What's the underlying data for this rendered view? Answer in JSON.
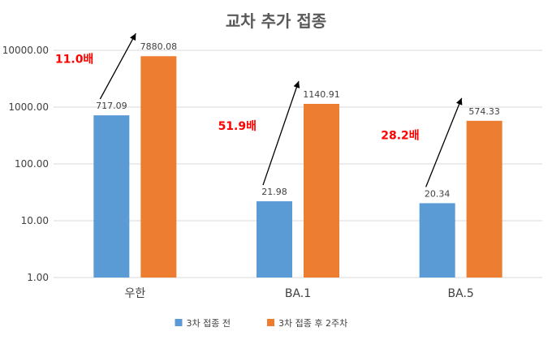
{
  "chart_data": {
    "type": "bar",
    "title": "교차 추가 접종",
    "y_scale": "log",
    "ylim": [
      1,
      10000
    ],
    "y_ticks": [
      "1.00",
      "10.00",
      "100.00",
      "1000.00",
      "10000.00"
    ],
    "grid": true,
    "legend_position": "bottom",
    "categories": [
      "우한",
      "BA.1",
      "BA.5"
    ],
    "series": [
      {
        "name": "3차 접종 전",
        "color": "#5b9bd5",
        "values": [
          717.09,
          21.98,
          20.34
        ],
        "labels": [
          "717.09",
          "21.98",
          "20.34"
        ]
      },
      {
        "name": "3차 접종 후 2주차",
        "color": "#ed7d31",
        "values": [
          7880.08,
          1140.91,
          574.33
        ],
        "labels": [
          "7880.08",
          "1140.91",
          "574.33"
        ]
      }
    ],
    "annotations": [
      {
        "text": "11.0배",
        "category": "우한",
        "color": "#ff0000"
      },
      {
        "text": "51.9배",
        "category": "BA.1",
        "color": "#ff0000"
      },
      {
        "text": "28.2배",
        "category": "BA.5",
        "color": "#ff0000"
      }
    ]
  }
}
